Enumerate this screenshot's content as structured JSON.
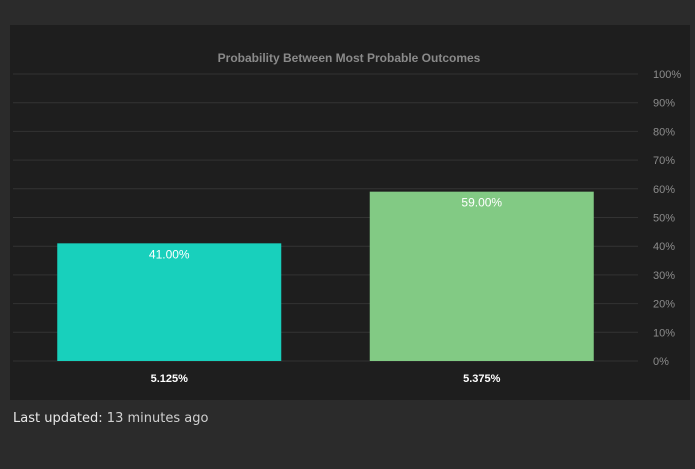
{
  "chart_data": {
    "type": "bar",
    "title": "Probability Between Most Probable Outcomes",
    "categories": [
      "5.125%",
      "5.375%"
    ],
    "values": [
      41.0,
      59.0
    ],
    "value_labels": [
      "41.00%",
      "59.00%"
    ],
    "colors": [
      "#18d0bc",
      "#82ca84"
    ],
    "ylim": [
      0,
      100
    ],
    "yticks": [
      0,
      10,
      20,
      30,
      40,
      50,
      60,
      70,
      80,
      90,
      100
    ],
    "ytick_suffix": "%",
    "xlabel": "",
    "ylabel": "",
    "grid": true,
    "legend": "none"
  },
  "footer": {
    "label": "Last updated:",
    "value": "13 minutes ago"
  }
}
